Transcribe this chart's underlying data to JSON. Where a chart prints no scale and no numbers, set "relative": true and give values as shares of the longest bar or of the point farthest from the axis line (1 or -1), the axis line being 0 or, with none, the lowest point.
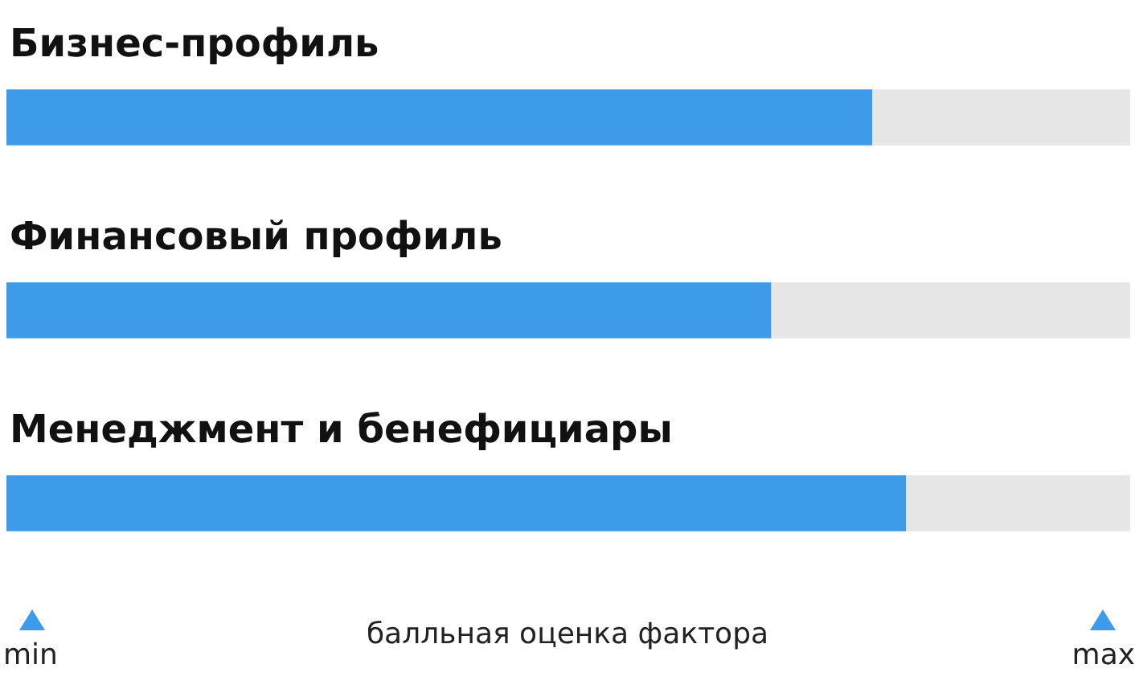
{
  "chart_data": {
    "type": "bar",
    "orientation": "horizontal",
    "stacked": true,
    "relative": true,
    "categories": [
      "Бизнес-профиль",
      "Финансовый профиль",
      "Менеджмент и бенефициары"
    ],
    "series": [
      {
        "color": "#3d9be9",
        "values": [
          0.77,
          0.68,
          0.8
        ]
      },
      {
        "color": "#e6e6e6",
        "values": [
          0.23,
          0.32,
          0.2
        ]
      }
    ],
    "annotations": [
      "min",
      "балльная оценка фактора",
      "max"
    ]
  }
}
